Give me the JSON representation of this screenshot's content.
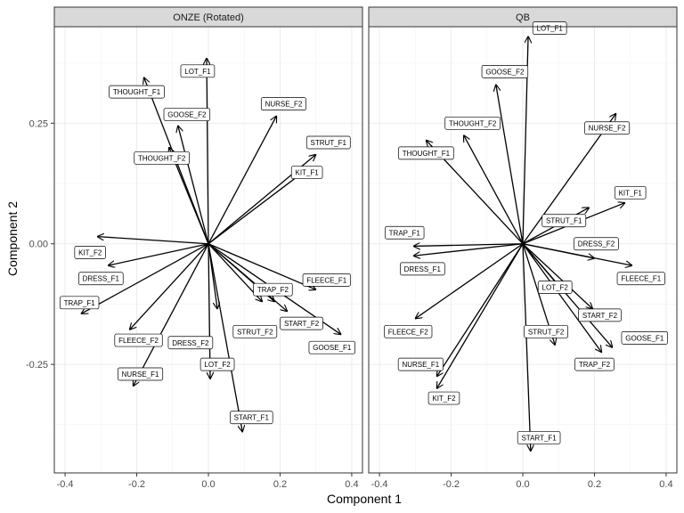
{
  "chart_data": {
    "type": "biplot",
    "xlabel": "Component 1",
    "ylabel": "Component 2",
    "xlim": [
      -0.43,
      0.43
    ],
    "ylim": [
      -0.475,
      0.45
    ],
    "x_ticks": [
      -0.4,
      -0.2,
      0.0,
      0.2,
      0.4
    ],
    "x_tick_labels": [
      "-0.4",
      "-0.2",
      "0.0",
      "0.2",
      "0.4"
    ],
    "y_ticks": [
      -0.25,
      0.0,
      0.25
    ],
    "y_tick_labels": [
      "-0.25",
      "0.00",
      "0.25"
    ],
    "grid": true,
    "panels": [
      {
        "title": "ONZE (Rotated)",
        "vectors": [
          {
            "label": "LOT_F1",
            "x": -0.005,
            "y": 0.385,
            "lx": -0.03,
            "ly": 0.358
          },
          {
            "label": "THOUGHT_F1",
            "x": -0.18,
            "y": 0.345,
            "lx": -0.2,
            "ly": 0.315
          },
          {
            "label": "GOOSE_F2",
            "x": -0.085,
            "y": 0.245,
            "lx": -0.06,
            "ly": 0.268
          },
          {
            "label": "NURSE_F2",
            "x": 0.19,
            "y": 0.265,
            "lx": 0.21,
            "ly": 0.29
          },
          {
            "label": "THOUGHT_F2",
            "x": -0.11,
            "y": 0.2,
            "lx": -0.13,
            "ly": 0.178
          },
          {
            "label": "STRUT_F1",
            "x": 0.3,
            "y": 0.185,
            "lx": 0.335,
            "ly": 0.21
          },
          {
            "label": "KIT_F1",
            "x": 0.285,
            "y": 0.16,
            "lx": 0.275,
            "ly": 0.148
          },
          {
            "label": "KIT_F2",
            "x": -0.31,
            "y": 0.015,
            "lx": -0.33,
            "ly": -0.018
          },
          {
            "label": "DRESS_F1",
            "x": -0.28,
            "y": -0.045,
            "lx": -0.3,
            "ly": -0.072
          },
          {
            "label": "TRAP_F1",
            "x": -0.355,
            "y": -0.145,
            "lx": -0.36,
            "ly": -0.122
          },
          {
            "label": "FLEECE_F2",
            "x": -0.22,
            "y": -0.178,
            "lx": -0.195,
            "ly": -0.2
          },
          {
            "label": "NURSE_F1",
            "x": -0.21,
            "y": -0.295,
            "lx": -0.19,
            "ly": -0.27
          },
          {
            "label": "DRESS_F2",
            "x": 0.025,
            "y": -0.135,
            "lx": -0.05,
            "ly": -0.205
          },
          {
            "label": "LOT_F2",
            "x": 0.005,
            "y": -0.28,
            "lx": 0.025,
            "ly": -0.25
          },
          {
            "label": "START_F1",
            "x": 0.095,
            "y": -0.39,
            "lx": 0.12,
            "ly": -0.36
          },
          {
            "label": "STRUT_F2",
            "x": 0.185,
            "y": -0.12,
            "lx": 0.13,
            "ly": -0.182
          },
          {
            "label": "TRAP_F2",
            "x": 0.15,
            "y": -0.12,
            "lx": 0.18,
            "ly": -0.095
          },
          {
            "label": "START_F2",
            "x": 0.22,
            "y": -0.14,
            "lx": 0.26,
            "ly": -0.165
          },
          {
            "label": "FLEECE_F1",
            "x": 0.3,
            "y": -0.095,
            "lx": 0.33,
            "ly": -0.075
          },
          {
            "label": "GOOSE_F1",
            "x": 0.37,
            "y": -0.188,
            "lx": 0.345,
            "ly": -0.215
          }
        ]
      },
      {
        "title": "QB",
        "vectors": [
          {
            "label": "LOT_F1",
            "x": 0.015,
            "y": 0.43,
            "lx": 0.075,
            "ly": 0.447
          },
          {
            "label": "GOOSE_F2",
            "x": -0.075,
            "y": 0.33,
            "lx": -0.05,
            "ly": 0.357
          },
          {
            "label": "THOUGHT_F2",
            "x": -0.165,
            "y": 0.225,
            "lx": -0.14,
            "ly": 0.25
          },
          {
            "label": "NURSE_F2",
            "x": 0.26,
            "y": 0.27,
            "lx": 0.235,
            "ly": 0.24
          },
          {
            "label": "THOUGHT_F1",
            "x": -0.27,
            "y": 0.215,
            "lx": -0.27,
            "ly": 0.188
          },
          {
            "label": "KIT_F1",
            "x": 0.285,
            "y": 0.085,
            "lx": 0.3,
            "ly": 0.106
          },
          {
            "label": "STRUT_F1",
            "x": 0.185,
            "y": 0.075,
            "lx": 0.115,
            "ly": 0.048
          },
          {
            "label": "TRAP_F1",
            "x": -0.305,
            "y": -0.005,
            "lx": -0.33,
            "ly": 0.023
          },
          {
            "label": "DRESS_F2",
            "x": 0.2,
            "y": -0.03,
            "lx": 0.205,
            "ly": 0.0
          },
          {
            "label": "DRESS_F1",
            "x": -0.305,
            "y": -0.025,
            "lx": -0.28,
            "ly": -0.052
          },
          {
            "label": "FLEECE_F1",
            "x": 0.305,
            "y": -0.045,
            "lx": 0.33,
            "ly": -0.072
          },
          {
            "label": "LOT_F2",
            "x": 0.115,
            "y": -0.1,
            "lx": 0.09,
            "ly": -0.09
          },
          {
            "label": "START_F2",
            "x": 0.195,
            "y": -0.135,
            "lx": 0.215,
            "ly": -0.148
          },
          {
            "label": "GOOSE_F1",
            "x": 0.25,
            "y": -0.215,
            "lx": 0.34,
            "ly": -0.195
          },
          {
            "label": "STRUT_F2",
            "x": 0.09,
            "y": -0.21,
            "lx": 0.065,
            "ly": -0.182
          },
          {
            "label": "TRAP_F2",
            "x": 0.22,
            "y": -0.225,
            "lx": 0.2,
            "ly": -0.25
          },
          {
            "label": "FLEECE_F2",
            "x": -0.3,
            "y": -0.155,
            "lx": -0.32,
            "ly": -0.182
          },
          {
            "label": "NURSE_F1",
            "x": -0.24,
            "y": -0.275,
            "lx": -0.285,
            "ly": -0.25
          },
          {
            "label": "KIT_F2",
            "x": -0.24,
            "y": -0.3,
            "lx": -0.22,
            "ly": -0.32
          },
          {
            "label": "START_F1",
            "x": 0.022,
            "y": -0.43,
            "lx": 0.045,
            "ly": -0.402
          }
        ]
      }
    ]
  }
}
